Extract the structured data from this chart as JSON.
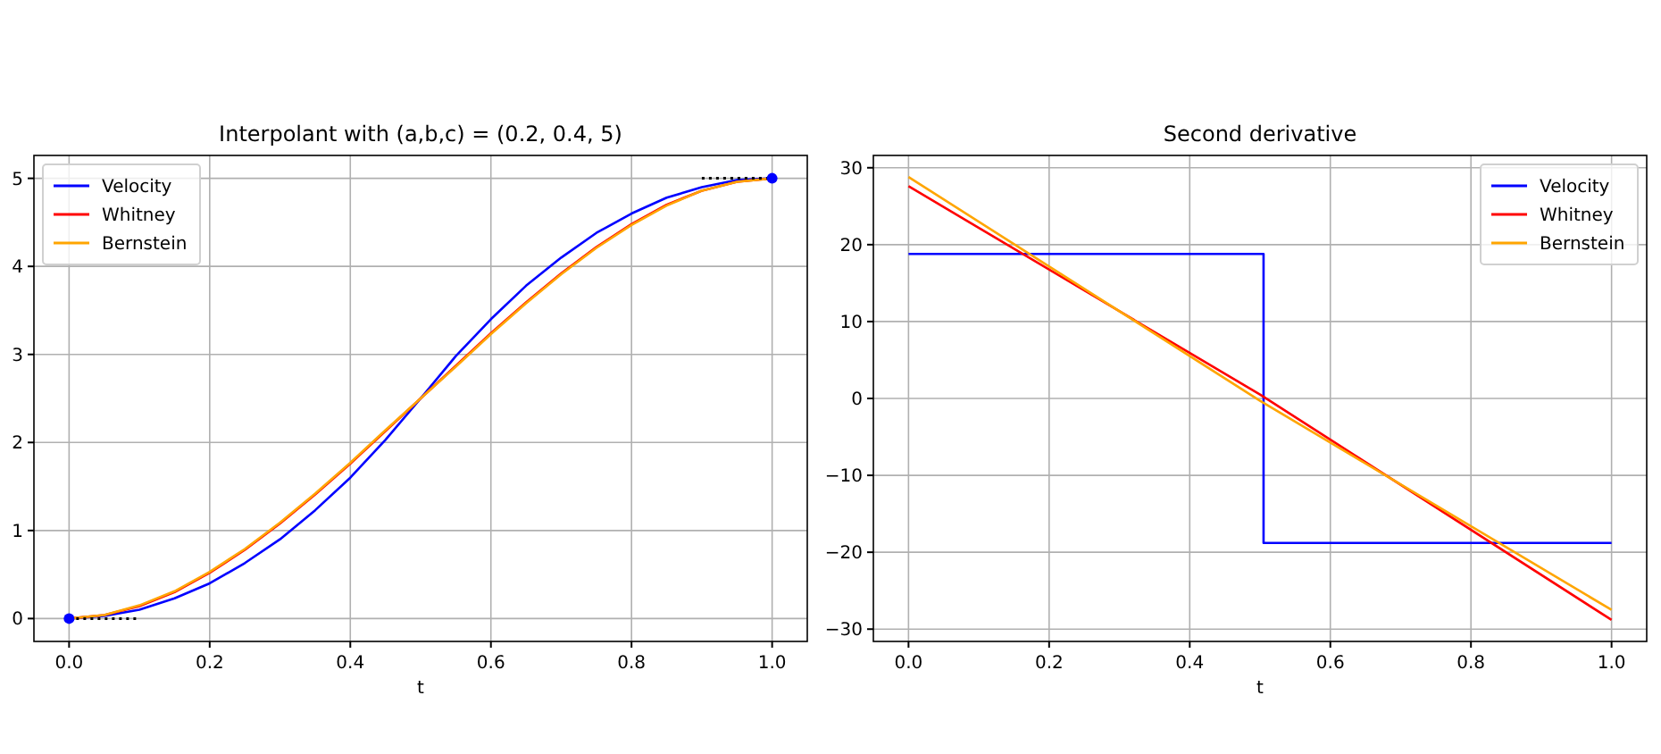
{
  "chart_data": [
    {
      "type": "line",
      "title": "Interpolant with (a,b,c) = (0.2, 0.4, 5)",
      "xlabel": "t",
      "xlim": [
        -0.05,
        1.05
      ],
      "ylim": [
        -0.26,
        5.26
      ],
      "xticks": [
        {
          "value": 0,
          "label": "0.0"
        },
        {
          "value": 0.2,
          "label": "0.2"
        },
        {
          "value": 0.4,
          "label": "0.4"
        },
        {
          "value": 0.6,
          "label": "0.6"
        },
        {
          "value": 0.8,
          "label": "0.8"
        },
        {
          "value": 1,
          "label": "1.0"
        }
      ],
      "yticks": [
        0,
        1,
        2,
        3,
        4,
        5
      ],
      "grid": true,
      "legend": "top left",
      "x": [
        0,
        0.05,
        0.1,
        0.15,
        0.2,
        0.25,
        0.3,
        0.35,
        0.4,
        0.45,
        0.5,
        0.55,
        0.6,
        0.65,
        0.7,
        0.75,
        0.8,
        0.85,
        0.9,
        0.95,
        1
      ],
      "series": [
        {
          "name": "Velocity",
          "color": "#0000ff",
          "values": [
            0,
            0.03,
            0.1,
            0.23,
            0.4,
            0.63,
            0.9,
            1.23,
            1.6,
            2.03,
            2.5,
            2.98,
            3.4,
            3.78,
            4.1,
            4.38,
            4.6,
            4.78,
            4.9,
            4.98,
            5
          ]
        },
        {
          "name": "Whitney",
          "color": "#ff0000",
          "values": [
            0,
            0.04,
            0.14,
            0.3,
            0.52,
            0.78,
            1.08,
            1.41,
            1.76,
            2.13,
            2.5,
            2.87,
            3.24,
            3.59,
            3.92,
            4.22,
            4.48,
            4.7,
            4.86,
            4.96,
            5
          ]
        },
        {
          "name": "Bernstein",
          "color": "#ffa500",
          "values": [
            0,
            0.04,
            0.15,
            0.31,
            0.53,
            0.79,
            1.09,
            1.42,
            1.77,
            2.14,
            2.5,
            2.86,
            3.23,
            3.58,
            3.91,
            4.21,
            4.47,
            4.69,
            4.86,
            4.96,
            5
          ]
        },
        {
          "type": "line",
          "color": "#000000",
          "line_style": "dotted",
          "x": [
            0,
            0.1
          ],
          "values": [
            0,
            0
          ]
        },
        {
          "type": "line",
          "color": "#000000",
          "line_style": "dotted",
          "x": [
            0.9,
            1
          ],
          "values": [
            5,
            5
          ]
        },
        {
          "type": "scatter",
          "color": "#0000ff",
          "marker": "circle",
          "x": [
            0,
            1
          ],
          "values": [
            0,
            5
          ]
        }
      ]
    },
    {
      "type": "line",
      "title": "Second derivative",
      "xlabel": "t",
      "xlim": [
        -0.05,
        1.05
      ],
      "ylim": [
        -31.6,
        31.6
      ],
      "xticks": [
        {
          "value": 0,
          "label": "0.0"
        },
        {
          "value": 0.2,
          "label": "0.2"
        },
        {
          "value": 0.4,
          "label": "0.4"
        },
        {
          "value": 0.6,
          "label": "0.6"
        },
        {
          "value": 0.8,
          "label": "0.8"
        },
        {
          "value": 1,
          "label": "1.0"
        }
      ],
      "yticks": [
        {
          "value": -30,
          "label": "−30"
        },
        {
          "value": -20,
          "label": "−20"
        },
        {
          "value": -10,
          "label": "−10"
        },
        0,
        10,
        20,
        30
      ],
      "grid": true,
      "legend": "top right",
      "series": [
        {
          "name": "Velocity",
          "color": "#0000ff",
          "x": [
            0,
            0.505,
            0.505,
            1
          ],
          "values": [
            18.8,
            18.8,
            -18.8,
            -18.8
          ]
        },
        {
          "name": "Whitney",
          "color": "#ff0000",
          "x": [
            0,
            0.5,
            1
          ],
          "values": [
            27.6,
            0.5,
            -28.8
          ]
        },
        {
          "name": "Bernstein",
          "color": "#ffa500",
          "x": [
            0,
            0.5,
            1
          ],
          "values": [
            28.8,
            -0.3,
            -27.5
          ]
        }
      ]
    }
  ]
}
